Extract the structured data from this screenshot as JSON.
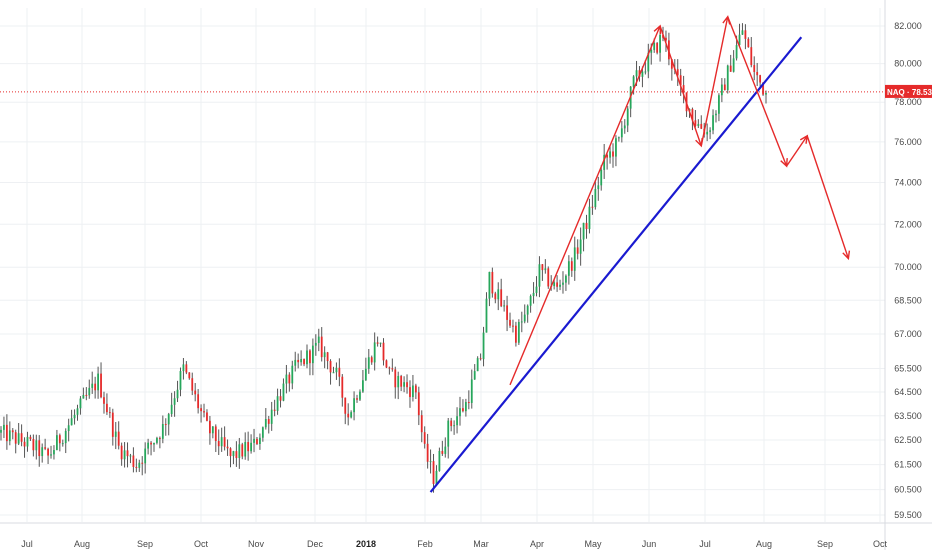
{
  "chart_data": {
    "type": "candlestick",
    "symbol_label": "NAQ",
    "current_price": 78.53,
    "current_price_label": "78.530",
    "y_ticks": [
      "59.500",
      "60.500",
      "61.500",
      "62.500",
      "63.500",
      "64.500",
      "65.500",
      "67.000",
      "68.500",
      "70.000",
      "72.000",
      "74.000",
      "76.000",
      "78.000",
      "80.000",
      "82.000"
    ],
    "y_scale": "log",
    "x_ticks": [
      "Jul",
      "Aug",
      "Sep",
      "Oct",
      "Nov",
      "Dec",
      "2018",
      "Feb",
      "Mar",
      "Apr",
      "May",
      "Jun",
      "Jul",
      "Aug",
      "Sep",
      "Oct"
    ],
    "x_bold_tick": "2018",
    "grid": true,
    "colors": {
      "up": "#26a65b",
      "down": "#e52a2a",
      "wick": "#555555",
      "trendline": "#1a1ad0",
      "annotation": "#e52a2a",
      "price_line": "#e52a2a"
    },
    "anchors": [
      {
        "i": 0,
        "p": 62.8
      },
      {
        "i": 10,
        "p": 62.3
      },
      {
        "i": 16,
        "p": 61.8
      },
      {
        "i": 25,
        "p": 63.5
      },
      {
        "i": 33,
        "p": 65.0
      },
      {
        "i": 40,
        "p": 62.2
      },
      {
        "i": 46,
        "p": 61.5
      },
      {
        "i": 55,
        "p": 63.0
      },
      {
        "i": 62,
        "p": 65.5
      },
      {
        "i": 70,
        "p": 63.0
      },
      {
        "i": 78,
        "p": 61.8
      },
      {
        "i": 86,
        "p": 62.3
      },
      {
        "i": 93,
        "p": 64.0
      },
      {
        "i": 100,
        "p": 65.5
      },
      {
        "i": 108,
        "p": 66.5
      },
      {
        "i": 114,
        "p": 65.2
      },
      {
        "i": 118,
        "p": 63.5
      },
      {
        "i": 124,
        "p": 65.5
      },
      {
        "i": 128,
        "p": 66.8
      },
      {
        "i": 132,
        "p": 65.2
      },
      {
        "i": 137,
        "p": 64.8
      },
      {
        "i": 141,
        "p": 64.5
      },
      {
        "i": 144,
        "p": 62.0
      },
      {
        "i": 147,
        "p": 61.0
      },
      {
        "i": 152,
        "p": 63.0
      },
      {
        "i": 158,
        "p": 64.0
      },
      {
        "i": 163,
        "p": 66.0
      },
      {
        "i": 166,
        "p": 69.5
      },
      {
        "i": 170,
        "p": 68.3
      },
      {
        "i": 175,
        "p": 67.0
      },
      {
        "i": 179,
        "p": 68.0
      },
      {
        "i": 183,
        "p": 69.8
      },
      {
        "i": 189,
        "p": 69.0
      },
      {
        "i": 195,
        "p": 70.5
      },
      {
        "i": 200,
        "p": 72.5
      },
      {
        "i": 205,
        "p": 75.0
      },
      {
        "i": 210,
        "p": 76.0
      },
      {
        "i": 215,
        "p": 79.0
      },
      {
        "i": 220,
        "p": 80.2
      },
      {
        "i": 225,
        "p": 81.5
      },
      {
        "i": 230,
        "p": 79.0
      },
      {
        "i": 236,
        "p": 77.0
      },
      {
        "i": 240,
        "p": 76.5
      },
      {
        "i": 244,
        "p": 78.0
      },
      {
        "i": 248,
        "p": 80.0
      },
      {
        "i": 252,
        "p": 81.8
      },
      {
        "i": 256,
        "p": 79.5
      },
      {
        "i": 260,
        "p": 78.5
      }
    ],
    "trendline": {
      "start": {
        "bar": 146,
        "price": 60.4
      },
      "end": {
        "bar": 272,
        "price": 81.4
      }
    },
    "projection_path": [
      {
        "bar": 173,
        "price": 64.8
      },
      {
        "bar": 224,
        "price": 82.0
      },
      {
        "bar": 238,
        "price": 75.8
      },
      {
        "bar": 247,
        "price": 82.5
      },
      {
        "bar": 267,
        "price": 74.8
      },
      {
        "bar": 274,
        "price": 76.3
      },
      {
        "bar": 288,
        "price": 70.4
      }
    ]
  }
}
